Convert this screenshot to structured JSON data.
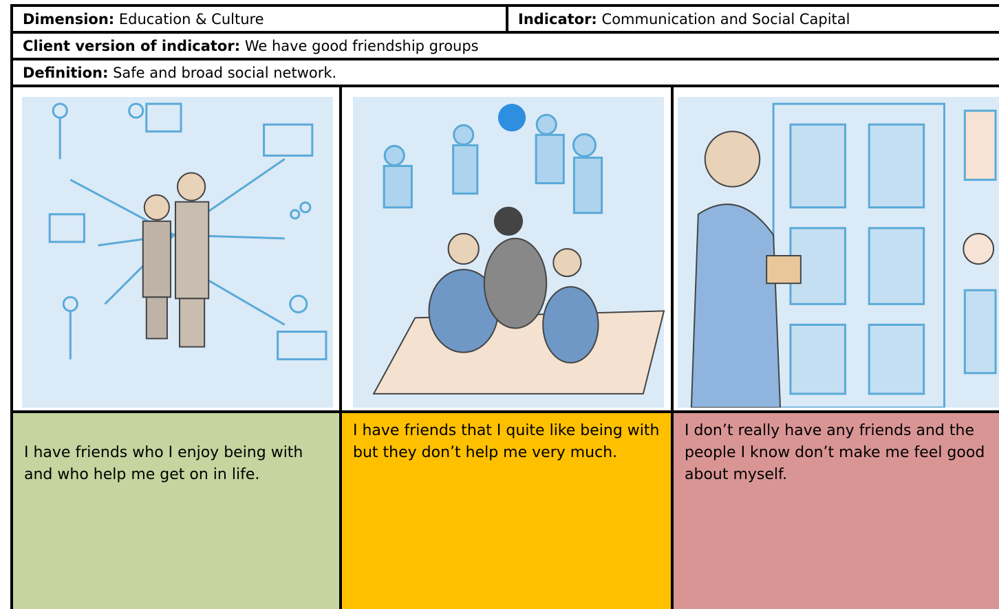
{
  "dimension": {
    "label": "Dimension:",
    "value": "Education & Culture"
  },
  "indicator": {
    "label": "Indicator:",
    "value": "Communication and Social Capital"
  },
  "client_version": {
    "label": "Client version of indicator:",
    "value": "We have good friendship groups"
  },
  "definition": {
    "label": "Definition:",
    "value": "Safe and broad social network."
  },
  "levels": [
    {
      "text": "I have friends who I enjoy being with and who help me get on in life."
    },
    {
      "text": "I have friends that I quite like being with but they don’t help me very much."
    },
    {
      "text": "I don’t really have any friends and the people I know don’t make me feel good about myself."
    }
  ]
}
